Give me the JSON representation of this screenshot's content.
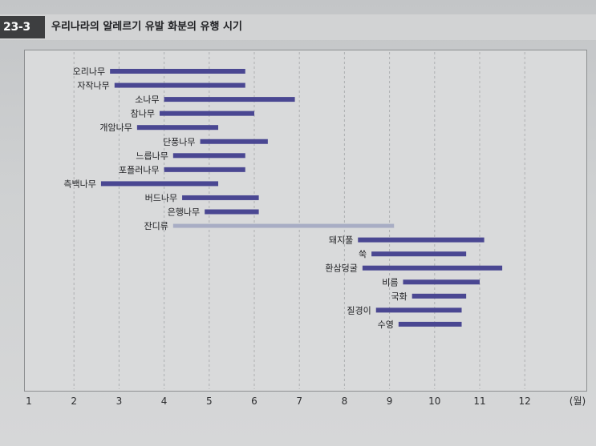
{
  "figure": {
    "number": "23-3",
    "title": "우리나라의 알레르기 유발 화분의 유행 시기"
  },
  "colors": {
    "bar": "#4a4792",
    "bar_light": "#a8adc4",
    "grid": "#aeb0b2",
    "text": "#202124"
  },
  "chart_data": {
    "type": "bar",
    "orientation": "horizontal-range",
    "x_ticks": [
      "1",
      "2",
      "3",
      "4",
      "5",
      "6",
      "7",
      "8",
      "9",
      "10",
      "11",
      "12"
    ],
    "x_unit": "(월)",
    "xlim": [
      1,
      13
    ],
    "grid": "vertical dashed",
    "series": [
      {
        "label": "오리나무",
        "start": 2.8,
        "end": 5.8,
        "style": "dark"
      },
      {
        "label": "자작나무",
        "start": 2.9,
        "end": 5.8,
        "style": "dark"
      },
      {
        "label": "소나무",
        "start": 4.0,
        "end": 6.9,
        "style": "dark"
      },
      {
        "label": "참나무",
        "start": 3.9,
        "end": 6.0,
        "style": "dark"
      },
      {
        "label": "개암나무",
        "start": 3.4,
        "end": 5.2,
        "style": "dark"
      },
      {
        "label": "단풍나무",
        "start": 4.8,
        "end": 6.3,
        "style": "dark"
      },
      {
        "label": "느릅나무",
        "start": 4.2,
        "end": 5.8,
        "style": "dark"
      },
      {
        "label": "포플러나무",
        "start": 4.0,
        "end": 5.8,
        "style": "dark"
      },
      {
        "label": "측백나무",
        "start": 2.6,
        "end": 5.2,
        "style": "dark"
      },
      {
        "label": "버드나무",
        "start": 4.4,
        "end": 6.1,
        "style": "dark"
      },
      {
        "label": "은행나무",
        "start": 4.9,
        "end": 6.1,
        "style": "dark"
      },
      {
        "label": "잔디류",
        "start": 4.2,
        "end": 9.1,
        "style": "light"
      },
      {
        "label": "돼지풀",
        "start": 8.3,
        "end": 11.1,
        "style": "dark"
      },
      {
        "label": "쑥",
        "start": 8.6,
        "end": 10.7,
        "style": "dark"
      },
      {
        "label": "환삼덩굴",
        "start": 8.4,
        "end": 11.5,
        "style": "dark"
      },
      {
        "label": "비름",
        "start": 9.3,
        "end": 11.0,
        "style": "dark"
      },
      {
        "label": "국화",
        "start": 9.5,
        "end": 10.7,
        "style": "dark"
      },
      {
        "label": "질경이",
        "start": 8.7,
        "end": 10.6,
        "style": "dark"
      },
      {
        "label": "수영",
        "start": 9.2,
        "end": 10.6,
        "style": "dark"
      }
    ]
  }
}
